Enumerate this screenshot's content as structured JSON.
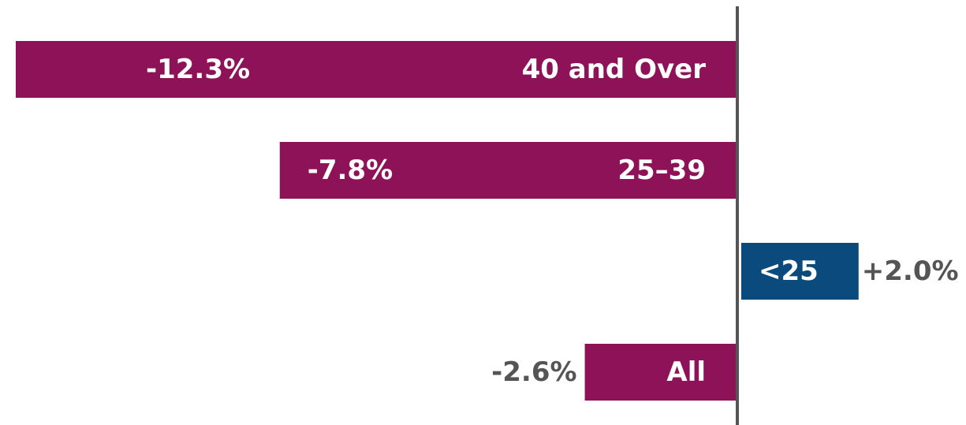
{
  "chart_data": {
    "type": "bar",
    "orientation": "horizontal",
    "categories": [
      "40 and Over",
      "25–39",
      "<25",
      "All"
    ],
    "values": [
      -12.3,
      -7.8,
      2.0,
      -2.6
    ],
    "value_labels": [
      "-12.3%",
      "-7.8%",
      "+2.0%",
      "-2.6%"
    ],
    "colors": [
      "#8e1257",
      "#8e1257",
      "#0b4a7d",
      "#8e1257"
    ]
  }
}
